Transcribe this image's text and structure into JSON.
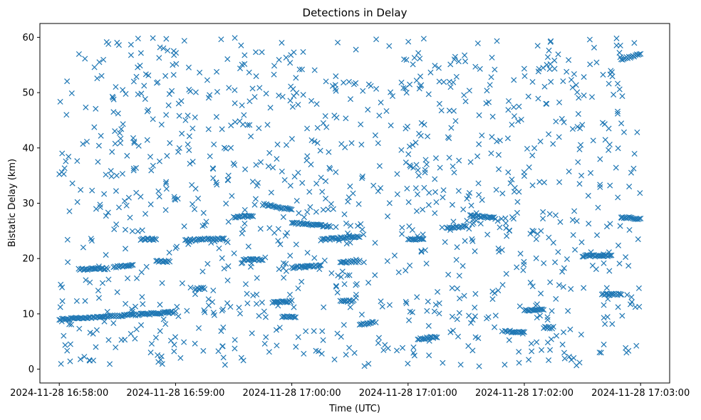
{
  "chart_data": {
    "type": "scatter",
    "title": "Detections in Delay",
    "xlabel": "Time (UTC)",
    "ylabel": "Bistatic Delay (km)",
    "marker": "x",
    "marker_color": "#1f77b4",
    "grid": false,
    "legend": "none",
    "xlim": [
      "2024-11-28 16:57:50",
      "2024-11-28 17:03:15"
    ],
    "ylim": [
      -2.5,
      62.5
    ],
    "x_ticks": [
      "2024-11-28 16:58:00",
      "2024-11-28 16:59:00",
      "2024-11-28 17:00:00",
      "2024-11-28 17:01:00",
      "2024-11-28 17:02:00",
      "2024-11-28 17:03:00"
    ],
    "y_ticks": [
      "0",
      "10",
      "20",
      "30",
      "40",
      "50",
      "60"
    ],
    "y_tick_values": [
      0,
      10,
      20,
      30,
      40,
      50,
      60
    ],
    "tracks": [
      {
        "x_start": "2024-11-28 16:58:00",
        "x_end": "2024-11-28 16:59:00",
        "y_start": 9.0,
        "y_end": 10.3
      },
      {
        "x_start": "2024-11-28 16:58:10",
        "x_end": "2024-11-28 16:58:25",
        "y_start": 18.0,
        "y_end": 18.2
      },
      {
        "x_start": "2024-11-28 16:58:28",
        "x_end": "2024-11-28 16:58:38",
        "y_start": 18.5,
        "y_end": 18.8
      },
      {
        "x_start": "2024-11-28 16:58:42",
        "x_end": "2024-11-28 16:58:50",
        "y_start": 23.5,
        "y_end": 23.5
      },
      {
        "x_start": "2024-11-28 16:58:50",
        "x_end": "2024-11-28 16:58:57",
        "y_start": 19.5,
        "y_end": 19.5
      },
      {
        "x_start": "2024-11-28 16:59:05",
        "x_end": "2024-11-28 16:59:25",
        "y_start": 23.3,
        "y_end": 23.6
      },
      {
        "x_start": "2024-11-28 16:59:10",
        "x_end": "2024-11-28 16:59:15",
        "y_start": 14.5,
        "y_end": 14.6
      },
      {
        "x_start": "2024-11-28 16:59:30",
        "x_end": "2024-11-28 16:59:40",
        "y_start": 27.5,
        "y_end": 27.7
      },
      {
        "x_start": "2024-11-28 16:59:35",
        "x_end": "2024-11-28 16:59:45",
        "y_start": 19.8,
        "y_end": 19.8
      },
      {
        "x_start": "2024-11-28 16:59:45",
        "x_end": "2024-11-28 17:00:00",
        "y_start": 29.8,
        "y_end": 28.8
      },
      {
        "x_start": "2024-11-28 16:59:50",
        "x_end": "2024-11-28 17:00:00",
        "y_start": 12.0,
        "y_end": 12.3
      },
      {
        "x_start": "2024-11-28 16:59:55",
        "x_end": "2024-11-28 17:00:02",
        "y_start": 9.5,
        "y_end": 9.5
      },
      {
        "x_start": "2024-11-28 17:00:00",
        "x_end": "2024-11-28 17:00:20",
        "y_start": 26.5,
        "y_end": 25.8
      },
      {
        "x_start": "2024-11-28 17:00:00",
        "x_end": "2024-11-28 17:00:15",
        "y_start": 18.4,
        "y_end": 18.7
      },
      {
        "x_start": "2024-11-28 17:00:15",
        "x_end": "2024-11-28 17:00:35",
        "y_start": 23.4,
        "y_end": 24.0
      },
      {
        "x_start": "2024-11-28 17:00:25",
        "x_end": "2024-11-28 17:00:35",
        "y_start": 19.3,
        "y_end": 19.5
      },
      {
        "x_start": "2024-11-28 17:00:25",
        "x_end": "2024-11-28 17:00:32",
        "y_start": 12.3,
        "y_end": 12.3
      },
      {
        "x_start": "2024-11-28 17:00:35",
        "x_end": "2024-11-28 17:00:42",
        "y_start": 8.0,
        "y_end": 8.5
      },
      {
        "x_start": "2024-11-28 17:01:00",
        "x_end": "2024-11-28 17:01:08",
        "y_start": 23.5,
        "y_end": 23.5
      },
      {
        "x_start": "2024-11-28 17:01:05",
        "x_end": "2024-11-28 17:01:15",
        "y_start": 5.5,
        "y_end": 5.8
      },
      {
        "x_start": "2024-11-28 17:01:20",
        "x_end": "2024-11-28 17:01:30",
        "y_start": 25.5,
        "y_end": 25.8
      },
      {
        "x_start": "2024-11-28 17:01:32",
        "x_end": "2024-11-28 17:01:45",
        "y_start": 27.8,
        "y_end": 27.3
      },
      {
        "x_start": "2024-11-28 17:01:50",
        "x_end": "2024-11-28 17:02:00",
        "y_start": 6.8,
        "y_end": 6.8
      },
      {
        "x_start": "2024-11-28 17:02:00",
        "x_end": "2024-11-28 17:02:10",
        "y_start": 10.7,
        "y_end": 10.7
      },
      {
        "x_start": "2024-11-28 17:02:10",
        "x_end": "2024-11-28 17:02:15",
        "y_start": 7.5,
        "y_end": 7.5
      },
      {
        "x_start": "2024-11-28 17:02:30",
        "x_end": "2024-11-28 17:02:45",
        "y_start": 20.5,
        "y_end": 20.5
      },
      {
        "x_start": "2024-11-28 17:02:40",
        "x_end": "2024-11-28 17:02:50",
        "y_start": 13.5,
        "y_end": 13.5
      },
      {
        "x_start": "2024-11-28 17:02:50",
        "x_end": "2024-11-28 17:03:00",
        "y_start": 56.0,
        "y_end": 57.0
      },
      {
        "x_start": "2024-11-28 17:02:50",
        "x_end": "2024-11-28 17:03:00",
        "y_start": 27.5,
        "y_end": 27.2
      }
    ],
    "scatter_x_range": [
      "2024-11-28 16:58:00",
      "2024-11-28 17:03:00"
    ],
    "scatter_y_range": [
      0.5,
      60
    ]
  }
}
